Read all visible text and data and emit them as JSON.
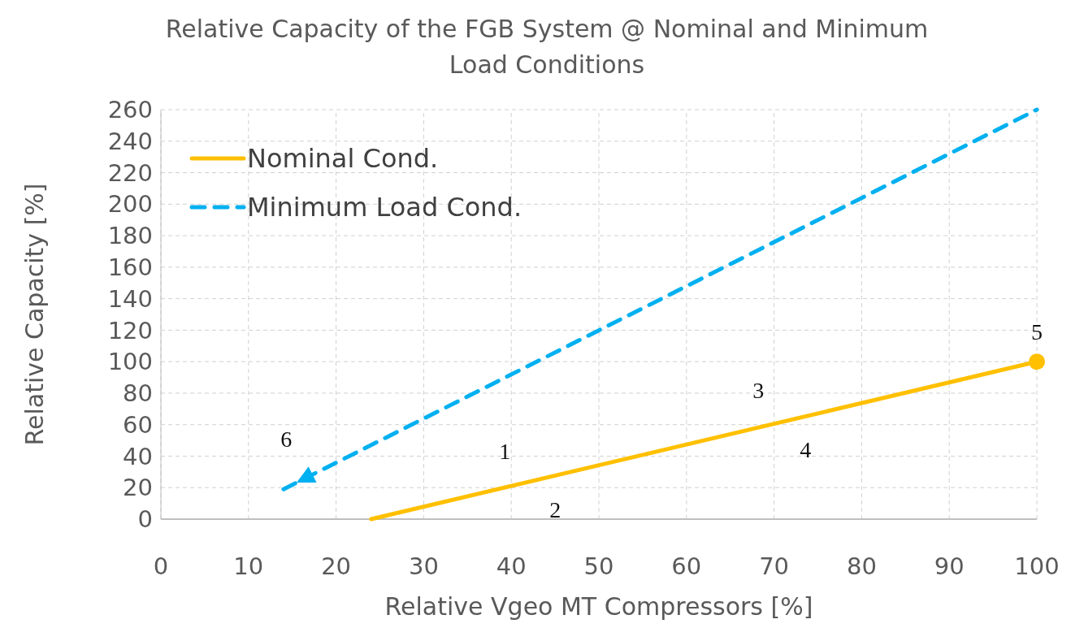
{
  "chart_data": {
    "type": "line",
    "title": "Relative Capacity of the FGB System @ Nominal and Minimum Load Conditions",
    "xlabel": "Relative Vgeo MT Compressors [%]",
    "ylabel": "Relative Capacity [%]",
    "xlim": [
      0,
      100
    ],
    "xticks": [
      0,
      10,
      20,
      30,
      40,
      50,
      60,
      70,
      80,
      90,
      100
    ],
    "ylim": [
      0,
      260
    ],
    "yticks": [
      0,
      20,
      40,
      60,
      80,
      100,
      120,
      140,
      160,
      180,
      200,
      220,
      240,
      260
    ],
    "grid": true,
    "legend": "top left",
    "series": [
      {
        "name": "Nominal Cond.",
        "color": "#ffc000",
        "x": [
          24,
          100
        ],
        "values": [
          0,
          100
        ],
        "line_style": "solid",
        "marker": "none"
      },
      {
        "name": "Minimum Load Cond.",
        "color": "#00b0f0",
        "x": [
          14,
          100
        ],
        "values": [
          19,
          260
        ],
        "line_style": "dashed",
        "marker": "none"
      },
      {
        "type": "scatter",
        "color": "#ffc000",
        "x": [
          100
        ],
        "values": [
          100
        ],
        "marker": "circle"
      }
    ],
    "annotations": [
      {
        "text": "1",
        "x": 42.5,
        "y": 24
      },
      {
        "text": "2",
        "x": 42.5,
        "y": 24
      },
      {
        "text": "3",
        "x": 72,
        "y": 63
      },
      {
        "text": "4",
        "x": 72,
        "y": 63
      },
      {
        "text": "5",
        "x": 100,
        "y": 100
      },
      {
        "text": "6",
        "x": 17,
        "y": 27
      }
    ]
  }
}
